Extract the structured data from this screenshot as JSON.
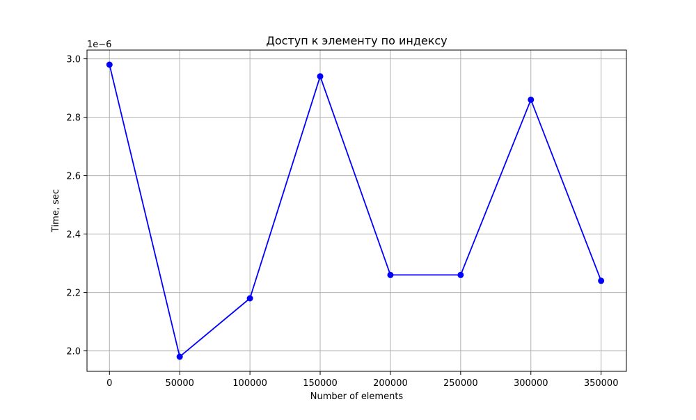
{
  "chart_data": {
    "type": "line",
    "title": "Доступ к элементу по индексу",
    "xlabel": "Number of elements",
    "ylabel": "Time, sec",
    "y_offset_label": "1e−6",
    "y_scale_factor": 1e-06,
    "xlim": [
      -16000,
      368000
    ],
    "ylim": [
      1.93,
      3.03
    ],
    "grid": true,
    "x_ticks": [
      0,
      50000,
      100000,
      150000,
      200000,
      250000,
      300000,
      350000
    ],
    "x_tick_labels": [
      "0",
      "50000",
      "100000",
      "150000",
      "200000",
      "250000",
      "300000",
      "350000"
    ],
    "y_ticks": [
      2.0,
      2.2,
      2.4,
      2.6,
      2.8,
      3.0
    ],
    "y_tick_labels": [
      "2.0",
      "2.2",
      "2.4",
      "2.6",
      "2.8",
      "3.0"
    ],
    "series": [
      {
        "color": "#0000ff",
        "marker": "circle",
        "x": [
          0,
          50000,
          100000,
          150000,
          200000,
          250000,
          300000,
          350000
        ],
        "y": [
          2.98,
          1.98,
          2.18,
          2.94,
          2.26,
          2.26,
          2.86,
          2.24
        ]
      }
    ]
  },
  "colors": {
    "line": "#0000ff",
    "grid": "#b0b0b0",
    "axes": "#000000"
  }
}
